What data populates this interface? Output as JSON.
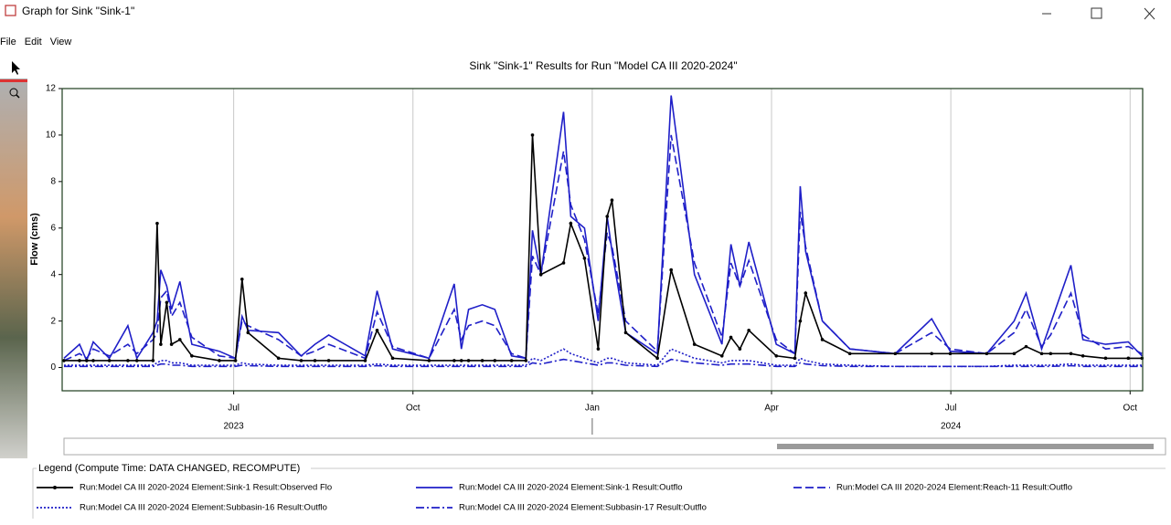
{
  "window": {
    "title": "Graph for Sink \"Sink-1\"",
    "menu": [
      "File",
      "Edit",
      "View"
    ]
  },
  "chart_data": {
    "type": "line",
    "title": "Sink \"Sink-1\" Results for Run \"Model CA III 2020-2024\"",
    "y_label": "Flow (cms)",
    "xlim": [
      4.13,
      22.21
    ],
    "ylim": [
      -1,
      12
    ],
    "xticks": [
      {
        "value": 7,
        "label": "Jul"
      },
      {
        "value": 10,
        "label": "Oct"
      },
      {
        "value": 13,
        "label": "Jan"
      },
      {
        "value": 16,
        "label": "Apr"
      },
      {
        "value": 19,
        "label": "Jul"
      },
      {
        "value": 22,
        "label": "Oct"
      }
    ],
    "x_group_labels": [
      {
        "value": 7,
        "label": "2023"
      },
      {
        "value": 19,
        "label": "2024"
      }
    ],
    "yticks": [
      0,
      2,
      4,
      6,
      8,
      10,
      12
    ],
    "grid": "x",
    "x": [
      4.16,
      4.42,
      4.54,
      4.65,
      4.92,
      5.23,
      5.38,
      5.65,
      5.72,
      5.78,
      5.88,
      5.96,
      6.1,
      6.3,
      6.76,
      7.03,
      7.14,
      7.24,
      7.75,
      8.13,
      8.36,
      8.59,
      9.2,
      9.4,
      9.66,
      10.27,
      10.69,
      10.81,
      10.93,
      11.16,
      11.37,
      11.65,
      11.89,
      12.0,
      12.14,
      12.52,
      12.64,
      12.87,
      13.1,
      13.25,
      13.33,
      13.56,
      14.09,
      14.32,
      14.71,
      15.17,
      15.32,
      15.47,
      15.62,
      16.08,
      16.39,
      16.48,
      16.57,
      16.85,
      17.31,
      18.07,
      18.68,
      18.99,
      19.6,
      20.06,
      20.26,
      20.52,
      20.67,
      21.01,
      21.21,
      21.59,
      21.97,
      22.2
    ],
    "series": [
      {
        "name": "Run:Model CA III 2020-2024 Element:Sink-1 Result:Observed Flo",
        "color": "#000000",
        "style": "solid",
        "marker": true,
        "values": [
          0.3,
          0.3,
          0.3,
          0.3,
          0.3,
          0.3,
          0.3,
          0.3,
          6.2,
          1.0,
          2.8,
          1.0,
          1.2,
          0.5,
          0.3,
          0.3,
          3.8,
          1.5,
          0.4,
          0.3,
          0.3,
          0.3,
          0.3,
          1.6,
          0.4,
          0.3,
          0.3,
          0.3,
          0.3,
          0.3,
          0.3,
          0.3,
          0.3,
          10.0,
          4.0,
          4.5,
          6.2,
          4.7,
          0.8,
          6.5,
          7.2,
          1.5,
          0.4,
          4.2,
          1.0,
          0.5,
          1.3,
          0.8,
          1.6,
          0.5,
          0.4,
          2.0,
          3.2,
          1.2,
          0.6,
          0.6,
          0.6,
          0.6,
          0.6,
          0.6,
          0.9,
          0.6,
          0.6,
          0.6,
          0.5,
          0.4,
          0.4,
          0.4
        ]
      },
      {
        "name": "Run:Model CA III 2020-2024 Element:Sink-1 Result:Outflo",
        "color": "#1f1fc8",
        "style": "solid",
        "marker": false,
        "values": [
          0.4,
          1.0,
          0.3,
          1.1,
          0.4,
          1.8,
          0.4,
          1.5,
          2.0,
          4.2,
          3.5,
          2.5,
          3.7,
          1.0,
          0.7,
          0.4,
          2.2,
          1.6,
          1.5,
          0.5,
          1.0,
          1.4,
          0.5,
          3.3,
          0.8,
          0.4,
          3.6,
          0.8,
          2.5,
          2.7,
          2.5,
          0.5,
          0.4,
          5.9,
          4.0,
          11.0,
          6.5,
          6.0,
          2.0,
          6.5,
          5.0,
          1.5,
          0.6,
          11.7,
          4.0,
          1.0,
          5.3,
          3.5,
          5.4,
          1.0,
          0.6,
          7.8,
          5.0,
          2.0,
          0.8,
          0.6,
          2.1,
          0.7,
          0.6,
          2.0,
          3.2,
          0.8,
          1.9,
          4.4,
          1.2,
          1.0,
          1.1,
          0.5
        ]
      },
      {
        "name": "Run:Model CA III 2020-2024 Element:Reach-11 Result:Outflo",
        "color": "#1f1fc8",
        "style": "dashed",
        "marker": false,
        "values": [
          0.3,
          0.6,
          0.4,
          0.8,
          0.5,
          1.0,
          0.6,
          1.2,
          1.5,
          3.0,
          3.3,
          2.2,
          2.8,
          1.3,
          0.5,
          0.4,
          2.0,
          1.8,
          1.2,
          0.5,
          0.7,
          1.0,
          0.4,
          2.4,
          0.9,
          0.4,
          2.5,
          1.2,
          1.8,
          2.0,
          1.8,
          0.6,
          0.4,
          4.8,
          4.0,
          9.3,
          7.0,
          5.5,
          2.3,
          5.8,
          5.2,
          2.0,
          0.7,
          10.0,
          4.5,
          1.3,
          4.5,
          3.5,
          4.6,
          1.2,
          0.6,
          6.7,
          5.2,
          2.0,
          0.8,
          0.6,
          1.5,
          0.8,
          0.6,
          1.5,
          2.5,
          0.9,
          1.4,
          3.2,
          1.4,
          0.8,
          0.9,
          0.6
        ]
      },
      {
        "name": "Run:Model CA III 2020-2024 Element:Subbasin-16 Result:Outflo",
        "color": "#1f1fc8",
        "style": "dotted",
        "marker": false,
        "values": [
          0.1,
          0.1,
          0.1,
          0.1,
          0.1,
          0.1,
          0.1,
          0.1,
          0.2,
          0.3,
          0.3,
          0.2,
          0.2,
          0.1,
          0.1,
          0.1,
          0.2,
          0.15,
          0.1,
          0.1,
          0.1,
          0.1,
          0.1,
          0.15,
          0.1,
          0.1,
          0.1,
          0.1,
          0.1,
          0.1,
          0.1,
          0.1,
          0.1,
          0.4,
          0.3,
          0.8,
          0.6,
          0.4,
          0.2,
          0.4,
          0.4,
          0.2,
          0.1,
          0.8,
          0.4,
          0.2,
          0.3,
          0.3,
          0.3,
          0.1,
          0.1,
          0.4,
          0.3,
          0.15,
          0.1,
          0.05,
          0.05,
          0.05,
          0.05,
          0.1,
          0.1,
          0.1,
          0.1,
          0.15,
          0.1,
          0.1,
          0.1,
          0.1
        ]
      },
      {
        "name": "Run:Model CA III 2020-2024 Element:Subbasin-17 Result:Outflo",
        "color": "#1f1fc8",
        "style": "dashdot",
        "marker": false,
        "values": [
          0.05,
          0.05,
          0.05,
          0.05,
          0.05,
          0.05,
          0.05,
          0.05,
          0.1,
          0.15,
          0.15,
          0.1,
          0.1,
          0.05,
          0.05,
          0.05,
          0.1,
          0.08,
          0.05,
          0.05,
          0.05,
          0.05,
          0.05,
          0.08,
          0.05,
          0.05,
          0.05,
          0.05,
          0.05,
          0.05,
          0.05,
          0.05,
          0.05,
          0.2,
          0.15,
          0.35,
          0.3,
          0.2,
          0.1,
          0.2,
          0.2,
          0.1,
          0.05,
          0.35,
          0.2,
          0.1,
          0.15,
          0.15,
          0.15,
          0.05,
          0.05,
          0.2,
          0.15,
          0.08,
          0.05,
          0.05,
          0.05,
          0.05,
          0.05,
          0.05,
          0.05,
          0.05,
          0.05,
          0.08,
          0.05,
          0.05,
          0.05,
          0.05
        ]
      }
    ]
  },
  "legend": {
    "title": "Legend (Compute Time: DATA CHANGED, RECOMPUTE)"
  }
}
